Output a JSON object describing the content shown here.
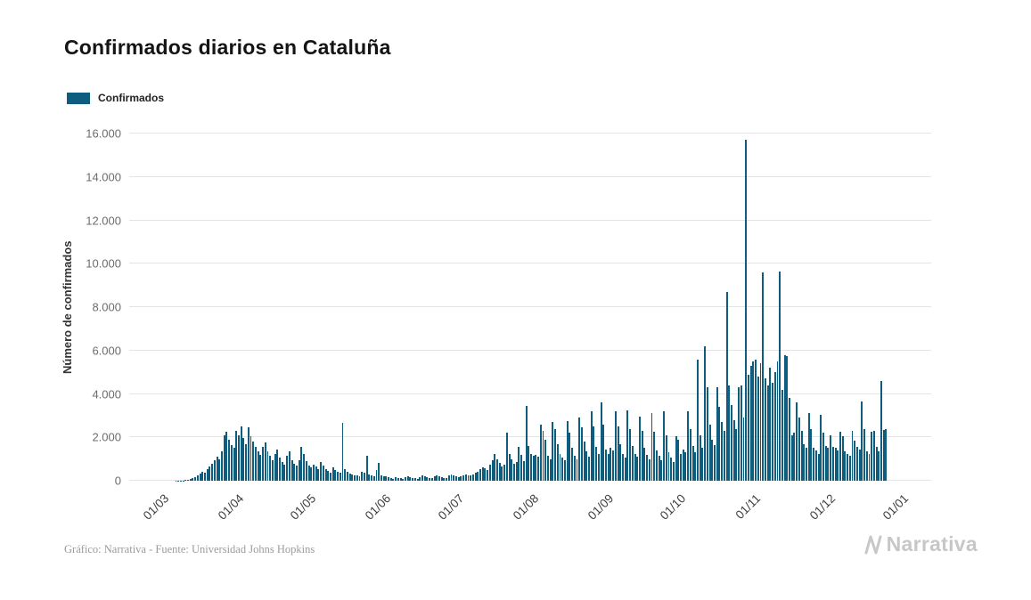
{
  "chart_data": {
    "type": "bar",
    "title": "Confirmados diarios en Cataluña",
    "series_name": "Confirmados",
    "ylabel": "Número de confirmados",
    "xlabel": "",
    "ylim": [
      0,
      16000
    ],
    "grid": true,
    "legend_position": "top-left",
    "y_tick_values": [
      0,
      2000,
      4000,
      6000,
      8000,
      10000,
      12000,
      14000,
      16000
    ],
    "y_tick_labels": [
      "0",
      "2.000",
      "4.000",
      "6.000",
      "8.000",
      "10.000",
      "12.000",
      "14.000",
      "16.000"
    ],
    "x_tick_labels": [
      "01/03",
      "01/04",
      "01/05",
      "01/06",
      "01/07",
      "01/08",
      "01/09",
      "01/10",
      "01/11",
      "01/12",
      "01/01"
    ],
    "x_tick_day_offsets": [
      0,
      31,
      61,
      92,
      122,
      153,
      184,
      214,
      245,
      276,
      306
    ],
    "values_start_label": "01/03",
    "values": [
      0,
      0,
      1,
      2,
      4,
      6,
      10,
      15,
      25,
      40,
      70,
      110,
      160,
      230,
      310,
      400,
      380,
      520,
      640,
      780,
      950,
      1100,
      1000,
      1350,
      2100,
      2250,
      1900,
      1650,
      1500,
      2300,
      2100,
      2500,
      1950,
      1700,
      2450,
      2050,
      1800,
      1550,
      1350,
      1200,
      1550,
      1750,
      1350,
      1150,
      950,
      1250,
      1450,
      1050,
      850,
      750,
      1150,
      1350,
      950,
      800,
      700,
      950,
      1550,
      1250,
      900,
      700,
      600,
      750,
      650,
      550,
      850,
      700,
      550,
      450,
      380,
      600,
      500,
      420,
      380,
      2650,
      550,
      400,
      340,
      300,
      260,
      230,
      200,
      420,
      380,
      1150,
      300,
      260,
      220,
      500,
      820,
      250,
      220,
      200,
      150,
      120,
      100,
      180,
      140,
      110,
      90,
      160,
      220,
      180,
      140,
      110,
      95,
      170,
      240,
      200,
      160,
      130,
      110,
      210,
      260,
      210,
      170,
      140,
      120,
      230,
      280,
      230,
      190,
      160,
      200,
      240,
      290,
      260,
      230,
      300,
      350,
      420,
      520,
      620,
      560,
      510,
      720,
      950,
      1250,
      1000,
      820,
      640,
      730,
      2200,
      1250,
      980,
      780,
      850,
      1550,
      1200,
      900,
      3450,
      1600,
      1250,
      1150,
      1200,
      1100,
      2600,
      2300,
      1900,
      1150,
      1000,
      2700,
      2400,
      1700,
      1250,
      1050,
      950,
      2750,
      2200,
      1500,
      1150,
      1000,
      2900,
      2450,
      1800,
      1350,
      1100,
      3200,
      2500,
      1550,
      1250,
      3600,
      2600,
      1450,
      1250,
      1500,
      1400,
      3200,
      2500,
      1700,
      1250,
      1050,
      3250,
      2400,
      1600,
      1250,
      1100,
      2950,
      2300,
      1500,
      1200,
      1000,
      3100,
      2250,
      1400,
      1150,
      950,
      3200,
      2100,
      1300,
      1050,
      850,
      2050,
      1900,
      1250,
      1450,
      1300,
      3200,
      2400,
      1600,
      1300,
      5600,
      2100,
      1500,
      6200,
      4300,
      2600,
      1900,
      1650,
      4300,
      3400,
      2700,
      2300,
      8700,
      4400,
      3500,
      2800,
      2400,
      4300,
      4400,
      2900,
      15700,
      4900,
      5300,
      5500,
      5600,
      4800,
      5400,
      9600,
      4700,
      4400,
      5200,
      4500,
      5000,
      5500,
      9650,
      4200,
      5800,
      5750,
      3800,
      2100,
      2200,
      3600,
      2900,
      2300,
      1700,
      1500,
      3100,
      2400,
      1500,
      1400,
      1250,
      3050,
      2200,
      1600,
      1500,
      2100,
      1550,
      1500,
      1400,
      2250,
      2050,
      1350,
      1250,
      1150,
      2300,
      1850,
      1550,
      1450,
      3650,
      2400,
      1350,
      1250,
      2250,
      2300,
      1550,
      1350,
      4600,
      2350,
      2400
    ]
  },
  "footer": {
    "credit": "Gráfico: Narrativa - Fuente: Universidad Johns Hopkins",
    "brand": "Narrativa"
  },
  "colors": {
    "bar": "#0e5c7e",
    "grid": "#e4e4e4",
    "brand": "#c7c7c7"
  }
}
